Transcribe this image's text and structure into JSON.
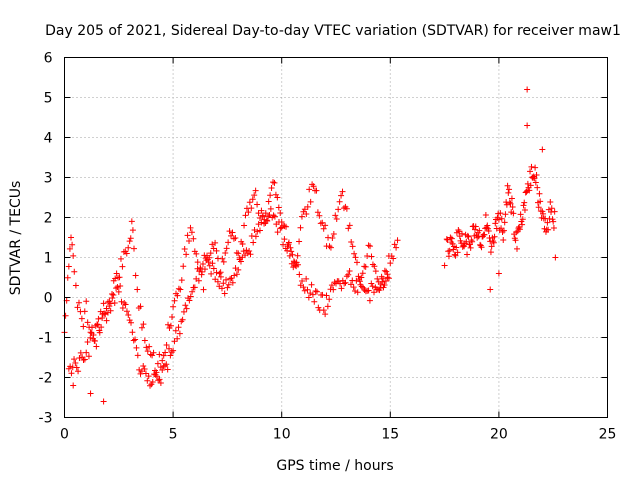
{
  "chart_data": {
    "type": "scatter",
    "title": "Day 205 of 2021, Sidereal Day-to-day VTEC variation (SDTVAR) for receiver maw1",
    "xlabel": "GPS time / hours",
    "ylabel": "SDTVAR / TECUs",
    "xlim": [
      0,
      25
    ],
    "ylim": [
      -3,
      6
    ],
    "xticks": [
      0,
      5,
      10,
      15,
      20,
      25
    ],
    "yticks": [
      -3,
      -2,
      -1,
      0,
      1,
      2,
      3,
      4,
      5,
      6
    ],
    "grid": true,
    "marker": "+",
    "marker_color": "#ff0000",
    "series": [
      {
        "name": "SDTVAR",
        "trace_x": [
          0.0,
          0.15,
          0.3,
          0.45,
          0.6,
          0.8,
          1.0,
          1.2,
          1.4,
          1.6,
          1.8,
          2.0,
          2.2,
          2.4,
          2.6,
          2.8,
          3.0,
          3.1,
          3.2,
          3.35,
          3.5,
          3.7,
          3.9,
          4.1,
          4.3,
          4.5,
          4.7,
          4.9,
          5.0,
          5.2,
          5.4,
          5.6,
          5.8,
          6.0,
          6.2,
          6.4,
          6.6,
          6.8,
          7.0,
          7.2,
          7.4,
          7.6,
          7.8,
          8.0,
          8.2,
          8.4,
          8.6,
          8.8,
          9.0,
          9.2,
          9.4,
          9.6,
          9.8,
          10.0,
          10.2,
          10.4,
          10.6,
          10.8,
          11.0,
          11.2,
          11.4,
          11.6,
          11.8,
          12.0,
          12.2,
          12.4,
          12.6,
          12.8,
          13.0,
          13.2,
          13.4,
          13.6,
          13.8,
          14.0,
          14.2,
          14.4,
          14.6,
          14.8,
          15.0,
          15.2,
          15.4
        ],
        "trace_y": [
          -0.8,
          0.4,
          1.6,
          0.8,
          -0.2,
          -0.6,
          -0.3,
          -0.8,
          -1.2,
          -0.6,
          -0.2,
          -0.5,
          0.1,
          0.5,
          0.8,
          1.0,
          1.4,
          1.9,
          1.2,
          0.3,
          -0.4,
          -1.0,
          -1.4,
          -1.6,
          -1.7,
          -1.5,
          -1.0,
          -0.6,
          -0.3,
          0.0,
          0.6,
          1.2,
          1.6,
          1.3,
          0.8,
          0.4,
          0.9,
          1.4,
          1.1,
          0.6,
          1.2,
          1.8,
          1.5,
          1.0,
          1.5,
          2.1,
          2.4,
          2.6,
          2.2,
          1.8,
          2.3,
          2.8,
          2.5,
          2.0,
          1.6,
          1.2,
          0.8,
          1.4,
          2.0,
          2.4,
          2.7,
          2.5,
          2.0,
          1.6,
          1.3,
          1.8,
          2.3,
          2.6,
          2.1,
          1.4,
          0.9,
          0.6,
          0.8,
          1.2,
          0.9,
          0.5,
          0.3,
          0.6,
          1.0,
          1.3,
          1.5
        ],
        "trace2_x": [
          0.2,
          0.5,
          1.0,
          1.5,
          2.0,
          2.5,
          3.0,
          3.5,
          4.0,
          4.5,
          5.0,
          5.5,
          6.0,
          6.5,
          7.0,
          7.5,
          8.0,
          8.5,
          9.0,
          9.5,
          10.0,
          10.5,
          11.0,
          11.5,
          12.0,
          12.5,
          13.0,
          13.5,
          14.0,
          14.5,
          15.0
        ],
        "trace2_y": [
          -1.6,
          -1.8,
          -1.4,
          -0.8,
          -0.3,
          0.2,
          -0.6,
          -1.8,
          -2.1,
          -2.0,
          -1.2,
          -0.4,
          0.4,
          0.9,
          0.6,
          0.2,
          0.7,
          1.2,
          1.8,
          2.2,
          1.6,
          0.9,
          0.4,
          0.0,
          -0.2,
          0.3,
          0.6,
          0.3,
          0.1,
          0.4,
          0.5
        ],
        "trace3_x": [
          17.6,
          17.8,
          18.0,
          18.2,
          18.4,
          18.6,
          18.8,
          19.0,
          19.2,
          19.4,
          19.6,
          19.8,
          20.0,
          20.2,
          20.4,
          20.6,
          20.8,
          21.0,
          21.2,
          21.4,
          21.6,
          21.8,
          22.0,
          22.2,
          22.4,
          22.6
        ],
        "trace3_y": [
          1.2,
          1.4,
          1.3,
          1.5,
          1.4,
          1.3,
          1.6,
          1.5,
          1.4,
          1.8,
          1.2,
          1.7,
          2.0,
          1.6,
          2.6,
          2.2,
          1.4,
          1.9,
          2.4,
          2.9,
          3.2,
          2.6,
          2.1,
          1.8,
          2.2,
          1.9
        ],
        "outliers_x": [
          21.3,
          21.3,
          22.0,
          17.5,
          19.6,
          20.0,
          1.8,
          1.2,
          0.4,
          22.6
        ],
        "outliers_y": [
          5.2,
          4.3,
          3.7,
          0.8,
          0.2,
          0.6,
          -2.6,
          -2.4,
          -2.2,
          1.0
        ]
      }
    ]
  }
}
